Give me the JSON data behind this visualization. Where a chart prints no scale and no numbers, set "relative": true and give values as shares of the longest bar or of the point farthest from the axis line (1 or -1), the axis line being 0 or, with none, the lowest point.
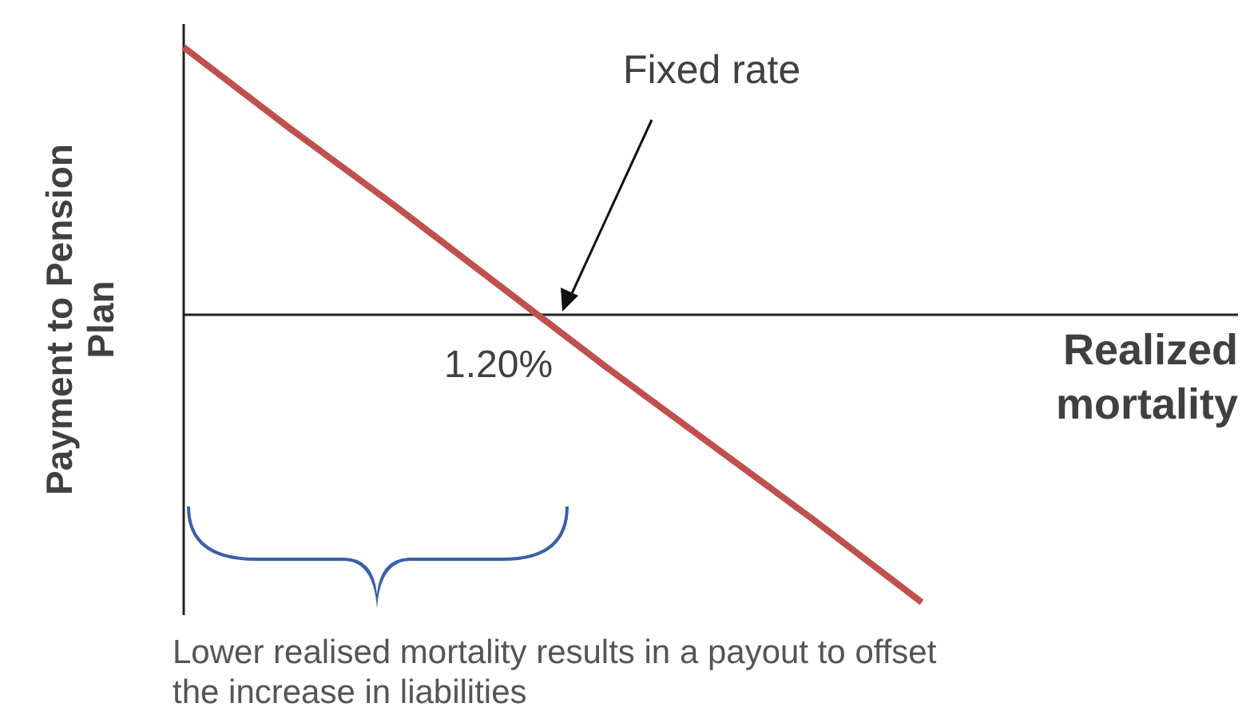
{
  "chart_data": {
    "type": "line",
    "relative": true,
    "xlabel": "Realized mortality",
    "ylabel": "Payment to Pension Plan",
    "categories": [
      null,
      null,
      null,
      null,
      null,
      null,
      null,
      null,
      null,
      null,
      null
    ],
    "series": [
      {
        "color": "#c0504d",
        "values": [
          0.93,
          0.65,
          0.38,
          0.1,
          -0.18,
          -0.45,
          -0.72,
          -1.0,
          null,
          null,
          null
        ]
      }
    ],
    "annotations": [
      "Fixed rate",
      "1.20%",
      "Lower realised mortality results in a payout to offset the increase in liabilities"
    ]
  }
}
